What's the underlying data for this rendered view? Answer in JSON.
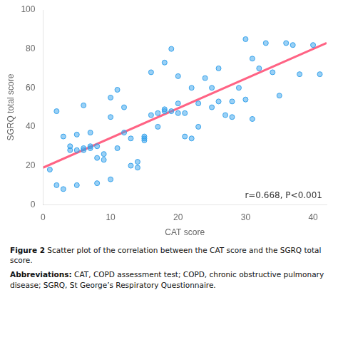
{
  "chart_data": {
    "type": "scatter",
    "x_label": "CAT score",
    "y_label": "SGRQ total score",
    "series": [
      {
        "type": "scatter",
        "x": [
          1,
          2,
          2,
          3,
          3,
          4,
          4,
          5,
          5,
          5,
          6,
          6,
          6,
          7,
          7,
          7,
          8,
          8,
          8,
          9,
          9,
          10,
          10,
          10,
          11,
          11,
          12,
          12,
          13,
          13,
          14,
          14,
          15,
          15,
          15,
          16,
          16,
          17,
          17,
          18,
          18,
          18,
          19,
          19,
          20,
          20,
          20,
          21,
          21,
          22,
          22,
          23,
          23,
          24,
          25,
          25,
          26,
          26,
          27,
          28,
          28,
          29,
          30,
          30,
          31,
          31,
          32,
          33,
          34,
          35,
          36,
          37,
          38,
          40,
          41
        ],
        "values": [
          18,
          10,
          48,
          8,
          35,
          28,
          30,
          28,
          10,
          36,
          29,
          28,
          51,
          29,
          37,
          30,
          11,
          30,
          24,
          23,
          26,
          13,
          45,
          55,
          29,
          59,
          37,
          50,
          20,
          34,
          19,
          22,
          33,
          34,
          35,
          46,
          68,
          40,
          47,
          48,
          49,
          73,
          48,
          80,
          47,
          66,
          52,
          35,
          47,
          34,
          60,
          40,
          52,
          65,
          50,
          60,
          70,
          53,
          46,
          53,
          45,
          60,
          85,
          54,
          75,
          44,
          70,
          83,
          68,
          56,
          83,
          82,
          67,
          82,
          67
        ]
      },
      {
        "type": "line",
        "x": [
          0,
          42
        ],
        "values": [
          19,
          83
        ]
      }
    ],
    "xlim": [
      0,
      42
    ],
    "ylim": [
      0,
      100
    ],
    "xticks": [
      0,
      10,
      20,
      30,
      40
    ],
    "yticks": [
      0,
      20,
      40,
      60,
      80,
      100
    ],
    "grid": false,
    "annotations": [
      "r=0.668, P<0.001"
    ],
    "caption": [
      {
        "bold": "Figure 2",
        "text": "Scatter plot of the correlation between the CAT score and the SGRQ\ntotal score."
      },
      {
        "bold": "Abbreviations:",
        "text": "CAT, COPD assessment test; COPD, chronic obstructive\npulmonary disease; SGRQ, St George’s Respiratory Questionnaire."
      }
    ]
  }
}
